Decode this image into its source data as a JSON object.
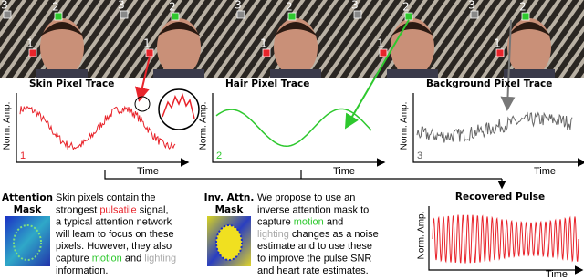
{
  "frames": {
    "markers": [
      "1",
      "2",
      "3"
    ]
  },
  "panels": [
    {
      "title": "Skin Pixel Trace",
      "y_label": "Norm. Amp.",
      "x_label": "Time",
      "index": "1"
    },
    {
      "title": "Hair Pixel Trace",
      "y_label": "Norm. Amp.",
      "x_label": "Time",
      "index": "2"
    },
    {
      "title": "Background Pixel Trace",
      "y_label": "Norm. Amp.",
      "x_label": "Time",
      "index": "3"
    }
  ],
  "recovered": {
    "title": "Recovered Pulse",
    "y_label": "Norm. Amp.",
    "x_label": "Time"
  },
  "attention": {
    "label": [
      "Attention",
      "Mask"
    ],
    "lines": [
      [
        {
          "text": "Skin pixels contain the"
        }
      ],
      [
        {
          "text": "strongest "
        },
        {
          "text": "pulsatile",
          "color": "#e8242b"
        },
        {
          "text": " signal,"
        }
      ],
      [
        {
          "text": "a typical attention network"
        }
      ],
      [
        {
          "text": "will learn to focus on these"
        }
      ],
      [
        {
          "text": "pixels. However, they also"
        }
      ],
      [
        {
          "text": "capture "
        },
        {
          "text": "motion",
          "color": "#2ec82e"
        },
        {
          "text": " and "
        },
        {
          "text": "lighting",
          "color": "#a8a8a8"
        }
      ],
      [
        {
          "text": "information."
        }
      ]
    ]
  },
  "inverse": {
    "label": [
      "Inv. Attn.",
      "Mask"
    ],
    "lines": [
      [
        {
          "text": "We propose to use an"
        }
      ],
      [
        {
          "text": "inverse attention mask to"
        }
      ],
      [
        {
          "text": "capture "
        },
        {
          "text": "motion",
          "color": "#2ec82e"
        },
        {
          "text": " and"
        }
      ],
      [
        {
          "text": "lighting",
          "color": "#a8a8a8"
        },
        {
          "text": " changes as a noise"
        }
      ],
      [
        {
          "text": "estimate and to use these"
        }
      ],
      [
        {
          "text": "to improve the pulse SNR"
        }
      ],
      [
        {
          "text": "and heart rate estimates."
        }
      ]
    ]
  }
}
